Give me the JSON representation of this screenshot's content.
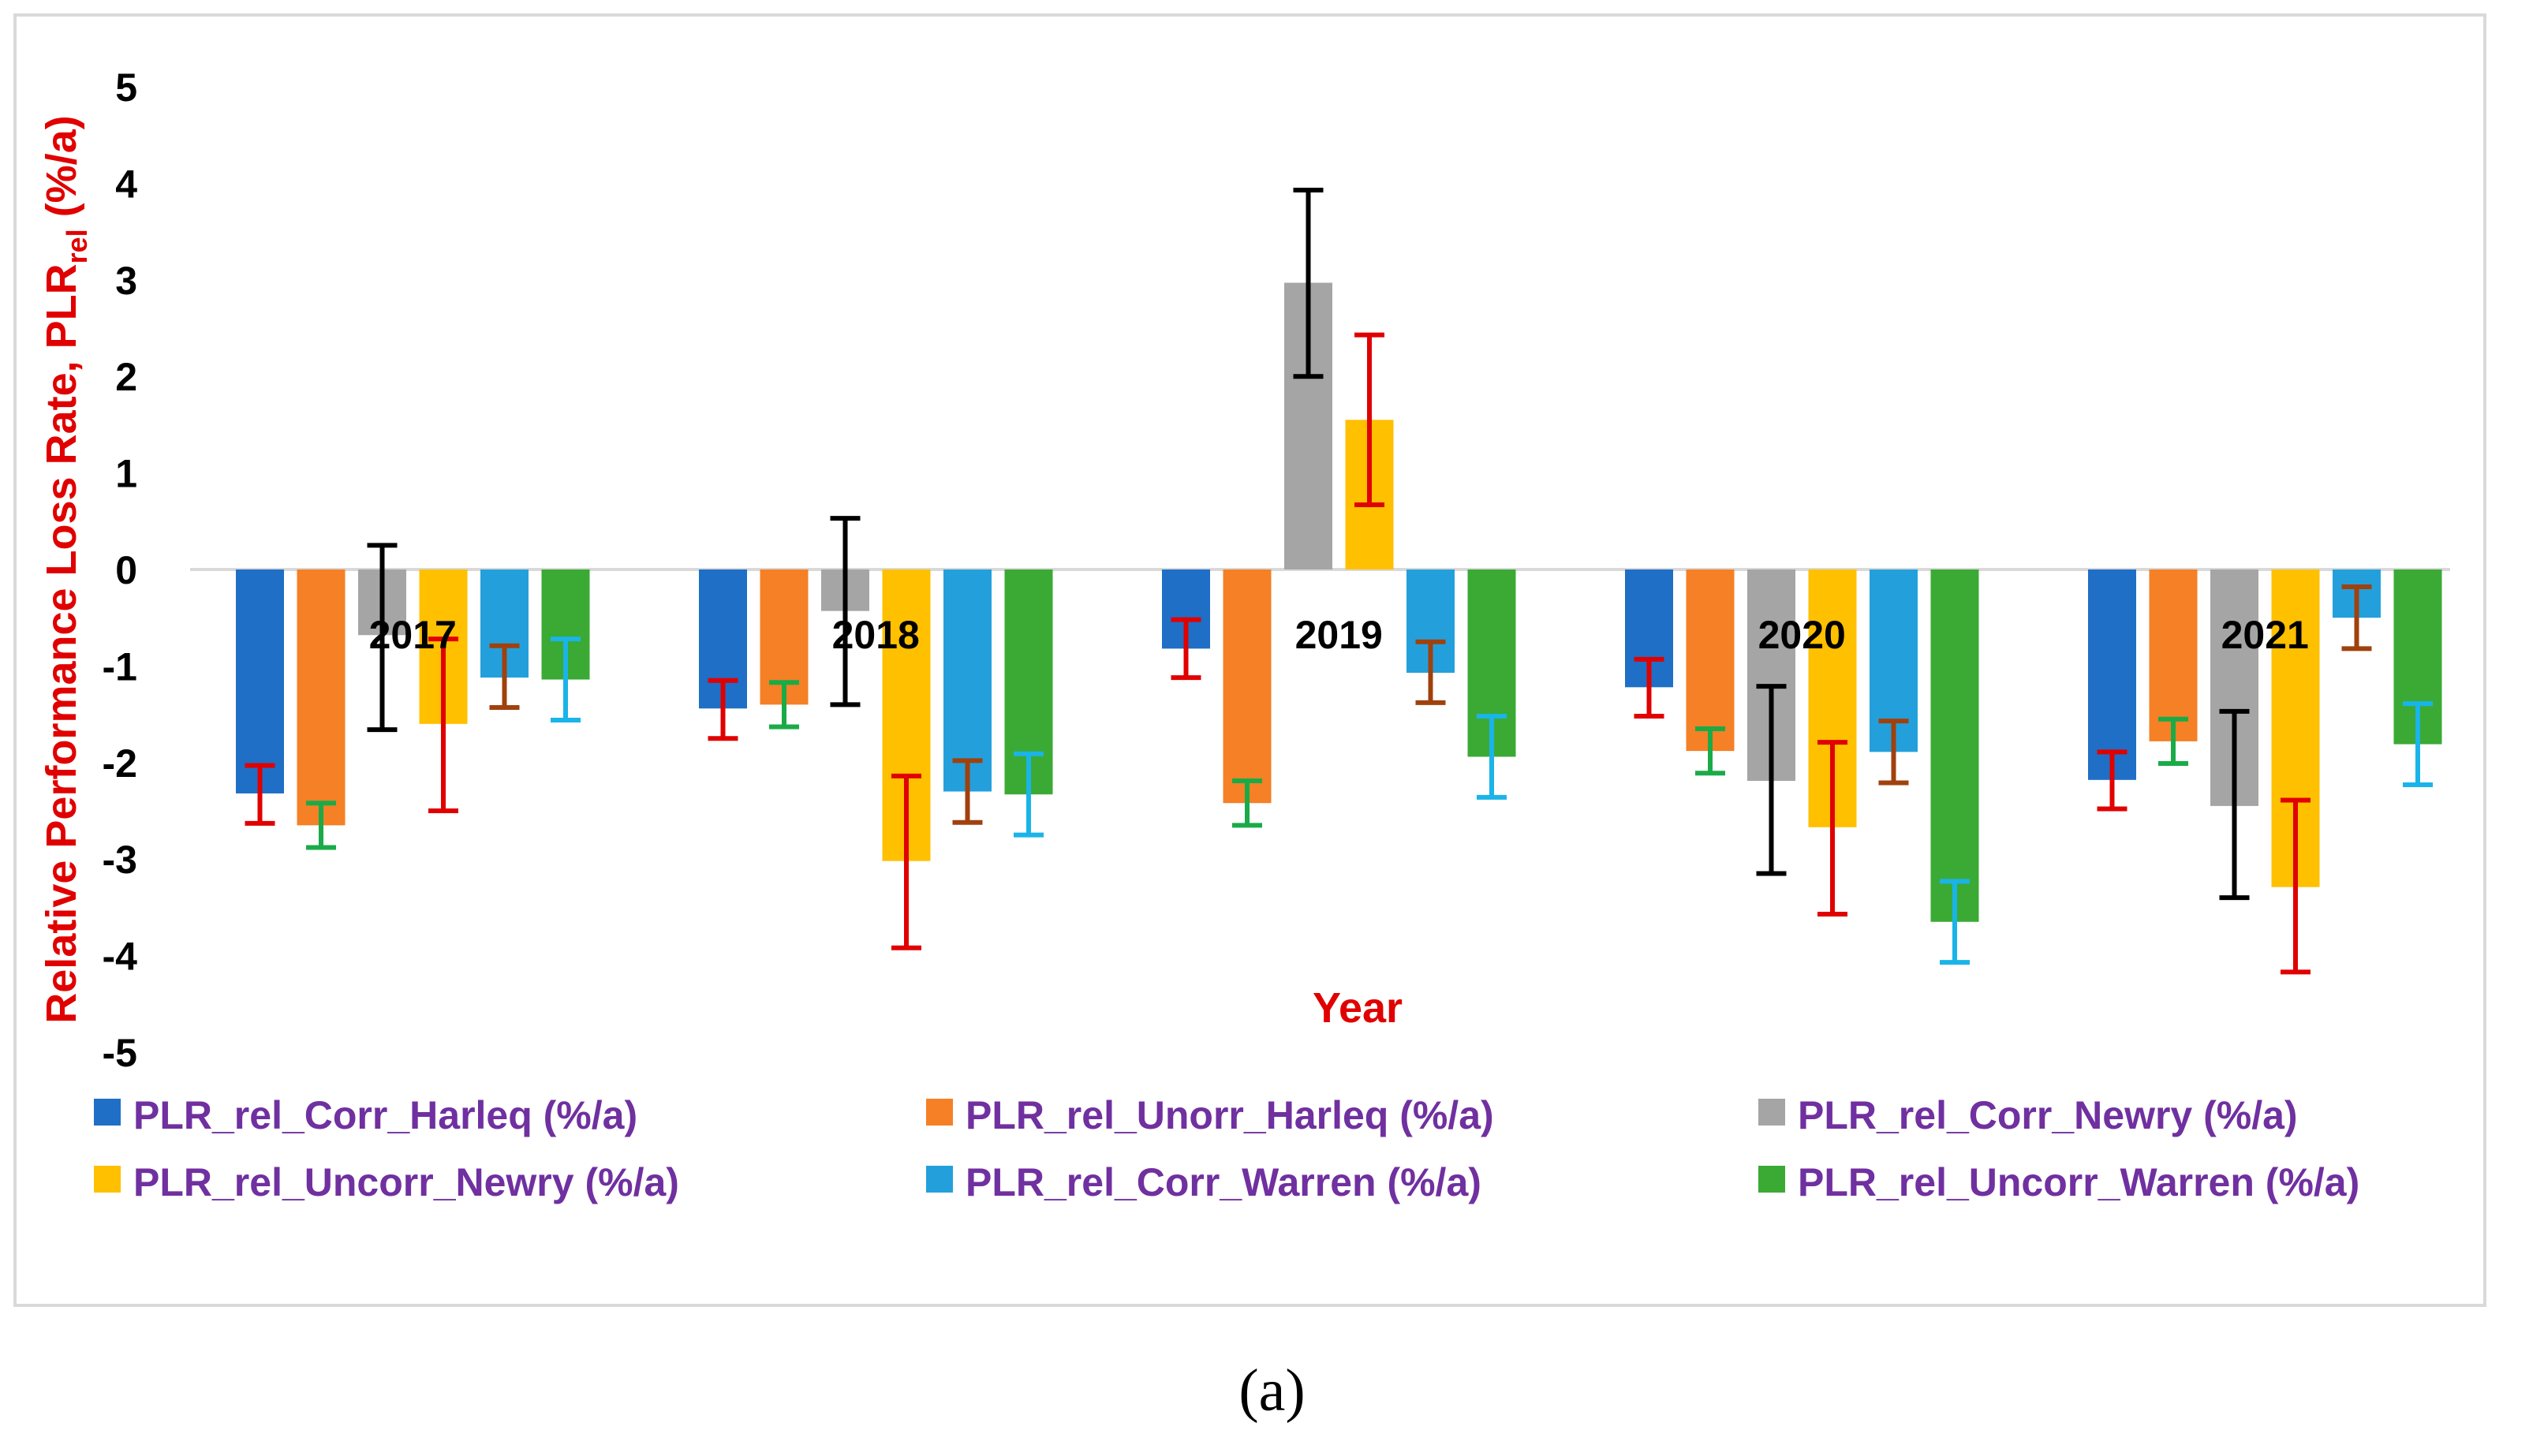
{
  "caption": "(a)",
  "chart_data": {
    "type": "bar",
    "title": "",
    "xlabel": "Year",
    "ylabel": "Relative Performance Loss Rate, PLR",
    "ylabel_sub": "rel",
    "ylabel_suffix": " (%/a)",
    "ylim": [
      -5,
      5
    ],
    "yticks": [
      5,
      4,
      3,
      2,
      1,
      0,
      -1,
      -2,
      -3,
      -4,
      -5
    ],
    "categories": [
      "2017",
      "2018",
      "2019",
      "2020",
      "2021"
    ],
    "legend_position": "bottom",
    "series": [
      {
        "name": "PLR_rel_Corr_Harleq (%/a)",
        "color": "#1f6fc6",
        "error_color": "#e00000",
        "values": [
          -2.32,
          -1.44,
          -0.82,
          -1.22,
          -2.18
        ],
        "errors": [
          [
            -2.63,
            -2.03
          ],
          [
            -1.75,
            -1.15
          ],
          [
            -1.12,
            -0.52
          ],
          [
            -1.52,
            -0.93
          ],
          [
            -2.48,
            -1.89
          ]
        ]
      },
      {
        "name": "PLR_rel_Unorr_Harleq (%/a)",
        "color": "#f58025",
        "error_color": "#1aab48",
        "values": [
          -2.65,
          -1.4,
          -2.42,
          -1.88,
          -1.78
        ],
        "errors": [
          [
            -2.88,
            -2.42
          ],
          [
            -1.63,
            -1.17
          ],
          [
            -2.65,
            -2.19
          ],
          [
            -2.11,
            -1.65
          ],
          [
            -2.01,
            -1.55
          ]
        ]
      },
      {
        "name": "PLR_rel_Corr_Newry (%/a)",
        "color": "#a5a5a5",
        "error_color": "#000000",
        "values": [
          -0.68,
          -0.43,
          2.97,
          -2.19,
          -2.45
        ],
        "errors": [
          [
            -1.66,
            0.25
          ],
          [
            -1.4,
            0.53
          ],
          [
            2.0,
            3.93
          ],
          [
            -3.15,
            -1.21
          ],
          [
            -3.4,
            -1.47
          ]
        ]
      },
      {
        "name": "PLR_rel_Uncorr_Newry (%/a)",
        "color": "#ffc000",
        "error_color": "#e00000",
        "values": [
          -1.6,
          -3.02,
          1.55,
          -2.67,
          -3.29
        ],
        "errors": [
          [
            -2.5,
            -0.72
          ],
          [
            -3.92,
            -2.14
          ],
          [
            0.67,
            2.43
          ],
          [
            -3.57,
            -1.79
          ],
          [
            -4.17,
            -2.39
          ]
        ]
      },
      {
        "name": "PLR_rel_Corr_Warren (%/a)",
        "color": "#23a0dc",
        "error_color": "#a0410d",
        "values": [
          -1.12,
          -2.3,
          -1.07,
          -1.89,
          -0.5
        ],
        "errors": [
          [
            -1.43,
            -0.79
          ],
          [
            -2.62,
            -1.98
          ],
          [
            -1.38,
            -0.75
          ],
          [
            -2.21,
            -1.57
          ],
          [
            -0.82,
            -0.18
          ]
        ]
      },
      {
        "name": "PLR_rel_Uncorr_Warren (%/a)",
        "color": "#3aaa35",
        "error_color": "#1ab4e8",
        "values": [
          -1.14,
          -2.33,
          -1.94,
          -3.65,
          -1.81
        ],
        "errors": [
          [
            -1.56,
            -0.72
          ],
          [
            -2.75,
            -1.91
          ],
          [
            -2.36,
            -1.52
          ],
          [
            -4.07,
            -3.23
          ],
          [
            -2.23,
            -1.39
          ]
        ]
      }
    ]
  }
}
